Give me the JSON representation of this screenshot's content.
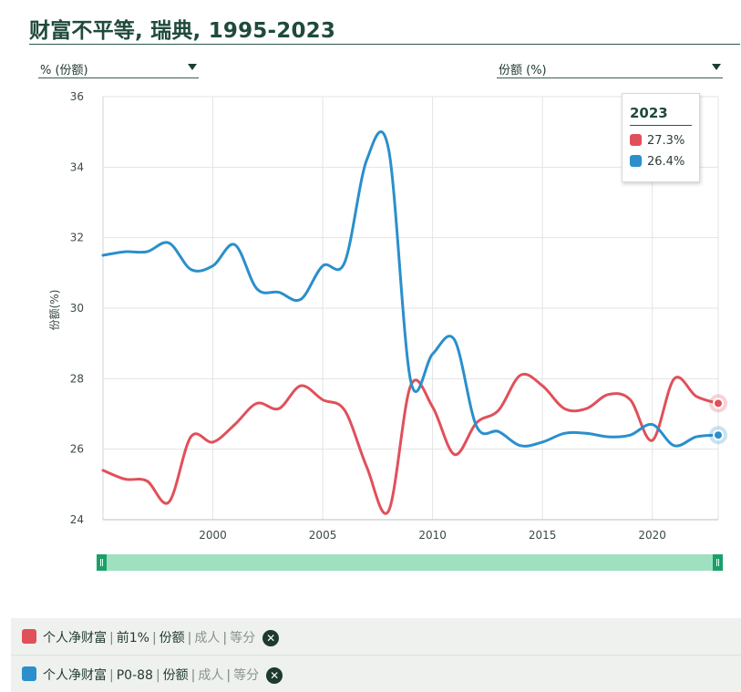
{
  "title": "财富不平等, 瑞典, 1995-2023",
  "controls": {
    "left_dropdown": "% (份额)",
    "right_dropdown": "份额 (%)"
  },
  "tooltip": {
    "year": "2023",
    "rows": [
      {
        "value": "27.3%",
        "color": "#e0505a"
      },
      {
        "value": "26.4%",
        "color": "#2a8fcc"
      }
    ]
  },
  "legend": [
    {
      "color": "#e0505a",
      "parts": [
        "个人净财富",
        "前1%",
        "份额"
      ],
      "muted": [
        "成人",
        "等分"
      ]
    },
    {
      "color": "#2a8fcc",
      "parts": [
        "个人净财富",
        "P0-88",
        "份额"
      ],
      "muted": [
        "成人",
        "等分"
      ]
    }
  ],
  "chart_data": {
    "type": "line",
    "title": "财富不平等, 瑞典, 1995-2023",
    "xlabel": "",
    "ylabel": "份额(%)",
    "xlim": [
      1995,
      2023
    ],
    "ylim": [
      24,
      36
    ],
    "xticks": [
      2000,
      2005,
      2010,
      2015,
      2020
    ],
    "yticks": [
      24,
      26,
      28,
      30,
      32,
      34,
      36
    ],
    "grid": true,
    "x": [
      1995,
      1996,
      1997,
      1998,
      1999,
      2000,
      2001,
      2002,
      2003,
      2004,
      2005,
      2006,
      2007,
      2008,
      2009,
      2010,
      2011,
      2012,
      2013,
      2014,
      2015,
      2016,
      2017,
      2018,
      2019,
      2020,
      2021,
      2022,
      2023
    ],
    "series": [
      {
        "color": "#e0505a",
        "values": [
          25.4,
          25.15,
          25.1,
          24.5,
          26.35,
          26.2,
          26.7,
          27.3,
          27.15,
          27.8,
          27.4,
          27.1,
          25.5,
          24.25,
          27.8,
          27.2,
          25.85,
          26.75,
          27.1,
          28.1,
          27.8,
          27.15,
          27.15,
          27.55,
          27.4,
          26.25,
          28.0,
          27.5,
          27.3
        ]
      },
      {
        "color": "#2a8fcc",
        "values": [
          31.5,
          31.6,
          31.6,
          31.85,
          31.1,
          31.2,
          31.8,
          30.55,
          30.45,
          30.25,
          31.2,
          31.3,
          34.2,
          34.5,
          27.95,
          28.7,
          29.1,
          26.65,
          26.5,
          26.1,
          26.2,
          26.45,
          26.45,
          26.35,
          26.4,
          26.7,
          26.1,
          26.35,
          26.4
        ]
      }
    ]
  }
}
